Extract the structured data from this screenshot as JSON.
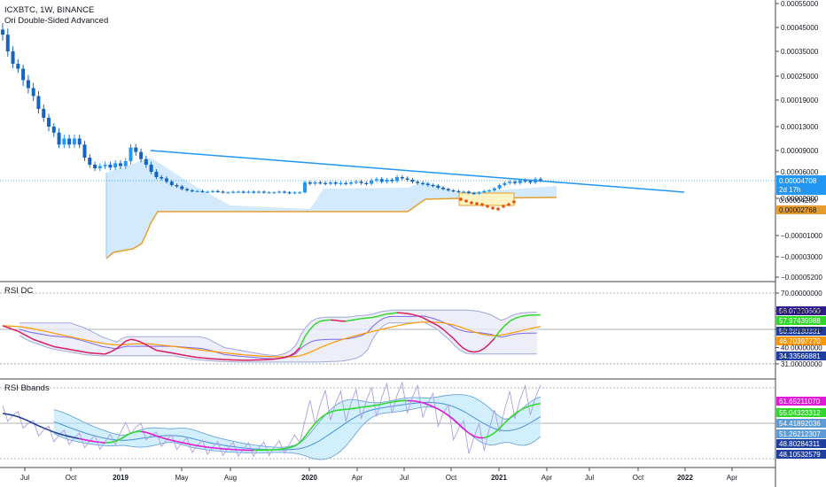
{
  "header": {
    "title": "ICXBTC, 1W, BINANCE",
    "indicator": "Ori Double-Sided Advanced"
  },
  "colors": {
    "up": "#2196f3",
    "down": "#1565c0",
    "trendline": "#2196f3",
    "cloud_fill": "#bbdefb",
    "support": "#e69d2e",
    "orange_line": "#ff9800",
    "red_line": "#d81b60",
    "green_line": "#31d82c",
    "purple_line": "#7b68ee",
    "blue_line": "#1e3fa0",
    "magenta_line": "#e01ad6",
    "thin_purple": "#b39ddb",
    "band_fill": "#e8eaf6"
  },
  "x_axis": {
    "ticks": [
      "Jul",
      "Oct",
      "2019",
      "May",
      "Aug",
      "2020",
      "Apr",
      "Jul",
      "Oct",
      "2021",
      "Apr",
      "Jul",
      "Oct",
      "2022",
      "Apr"
    ]
  },
  "chart_data": [
    {
      "type": "candlestick",
      "title": "ICXBTC, 1W, BINANCE",
      "subtitle": "Ori Double-Sided Advanced",
      "y_ticks": [
        "0.00055000",
        "0.00045000",
        "0.00035000",
        "0.00025000",
        "0.00019000",
        "0.00013000",
        "0.00009000",
        "0.00006000",
        "0.00002000",
        "−0.00001000",
        "−0.00003000",
        "−0.00005200"
      ],
      "price_labels": [
        {
          "value": "0.00004708",
          "sub": "2d 17h",
          "kind": "current"
        },
        {
          "value": "0.00004286",
          "kind": "plain"
        },
        {
          "value": "0.00002768",
          "kind": "support"
        }
      ],
      "candles_close": [
        0.00042,
        0.00035,
        0.0003,
        0.00028,
        0.00024,
        0.00022,
        0.0002,
        0.00017,
        0.00015,
        0.00013,
        0.00012,
        0.0001,
        0.00011,
        0.0001,
        0.00011,
        0.0001,
        8e-05,
        7e-05,
        6.5e-05,
        6.8e-05,
        7e-05,
        6.6e-05,
        7.2e-05,
        6.8e-05,
        7.5e-05,
        9.5e-05,
        8.8e-05,
        7.8e-05,
        7e-05,
        6e-05,
        5.2e-05,
        5e-05,
        4.5e-05,
        4e-05,
        3.8e-05,
        3.4e-05,
        3.2e-05,
        3.1e-05,
        3.1e-05,
        3e-05,
        3e-05,
        3.1e-05,
        3e-05,
        2.9e-05,
        2.9e-05,
        3e-05,
        3e-05,
        2.9e-05,
        3e-05,
        2.9e-05,
        3e-05,
        2.9e-05,
        2.9e-05,
        2.9e-05,
        3e-05,
        2.9e-05,
        2.8e-05,
        2.9e-05,
        2.9e-05,
        4.4e-05,
        4.2e-05,
        4.4e-05,
        4.3e-05,
        4.2e-05,
        4.4e-05,
        4.2e-05,
        4.3e-05,
        4.2e-05,
        4.4e-05,
        4.5e-05,
        4.3e-05,
        4.2e-05,
        4.7e-05,
        4.9e-05,
        4.5e-05,
        4.8e-05,
        4.6e-05,
        5.2e-05,
        5e-05,
        4.8e-05,
        4.5e-05,
        4.3e-05,
        4.2e-05,
        4e-05,
        3.9e-05,
        3.6e-05,
        3.4e-05,
        3.2e-05,
        3.1e-05,
        3e-05,
        3e-05,
        2.8e-05,
        2.7e-05,
        2.9e-05,
        3.1e-05,
        3.2e-05,
        3.5e-05,
        4e-05,
        4.3e-05,
        4.5e-05,
        4.3e-05,
        4.7e-05,
        4.6e-05,
        4.4e-05,
        4.9e-05,
        4.7e-05
      ],
      "trendline": {
        "from_close_index": 25,
        "price_start": 9.5e-05,
        "price_end": 4.3e-05
      }
    },
    {
      "type": "line",
      "title": "RSI DC",
      "y_ticks": [
        "70.00000000",
        "60.00000000",
        "50.00000000",
        "40.00000000",
        "31.00000000"
      ],
      "value_labels": [
        {
          "value": "58.07228660",
          "color": "#311b92"
        },
        {
          "value": "57.97439988",
          "color": "#31d82c"
        },
        {
          "value": "50.38130331",
          "color": "#1e3fa0"
        },
        {
          "value": "46.70397770",
          "color": "#ff9800"
        },
        {
          "value": "34.33566881",
          "color": "#1e3fa0"
        }
      ],
      "rsi_values": [
        52,
        51,
        50,
        49,
        47.5,
        46,
        44.5,
        43.5,
        42.5,
        41.5,
        40.5,
        40,
        39.5,
        39,
        38.5,
        38,
        37.5,
        37,
        36.8,
        36.6,
        36.4,
        37.5,
        39,
        41,
        43.5,
        44.5,
        44,
        43,
        41.5,
        40,
        38.5,
        38,
        37.5,
        37,
        36.5,
        36,
        35.5,
        35,
        34.6,
        34.3,
        34,
        33.8,
        33.6,
        33.4,
        33.3,
        33.2,
        33.1,
        33,
        33,
        33.1,
        33.2,
        33.3,
        33.4,
        33.6,
        34,
        34.6,
        35.4,
        37,
        40,
        46,
        50,
        53,
        54.5,
        55,
        55.2,
        55,
        54.6,
        54.5,
        55,
        55.5,
        56,
        56.2,
        56.5,
        57,
        57.8,
        58.5,
        58.8,
        59.2,
        59,
        58.7,
        58.2,
        57.5,
        56.5,
        55,
        53.5,
        52,
        50,
        47.5,
        45,
        42,
        39.5,
        38,
        37.5,
        38,
        39.5,
        42,
        45,
        49,
        52,
        54.5,
        56,
        57,
        57.5,
        57.8,
        57.9,
        57.97
      ]
    },
    {
      "type": "line",
      "title": "RSI Bbands",
      "y_ticks": [
        "61.65211070",
        "55.04323312",
        "54.41892036",
        "51.26212307",
        "48.80284311",
        "48.10532579"
      ],
      "value_labels": [
        {
          "value": "61.65211070",
          "color": "#e01ad6"
        },
        {
          "value": "55.04323312",
          "color": "#31d82c"
        },
        {
          "value": "54.41892036",
          "color": "#5c9bd5"
        },
        {
          "value": "51.26212307",
          "color": "#5c9bd5"
        },
        {
          "value": "48.80284311",
          "color": "#1e3fa0"
        },
        {
          "value": "48.10532579",
          "color": "#1e3fa0"
        }
      ]
    }
  ]
}
